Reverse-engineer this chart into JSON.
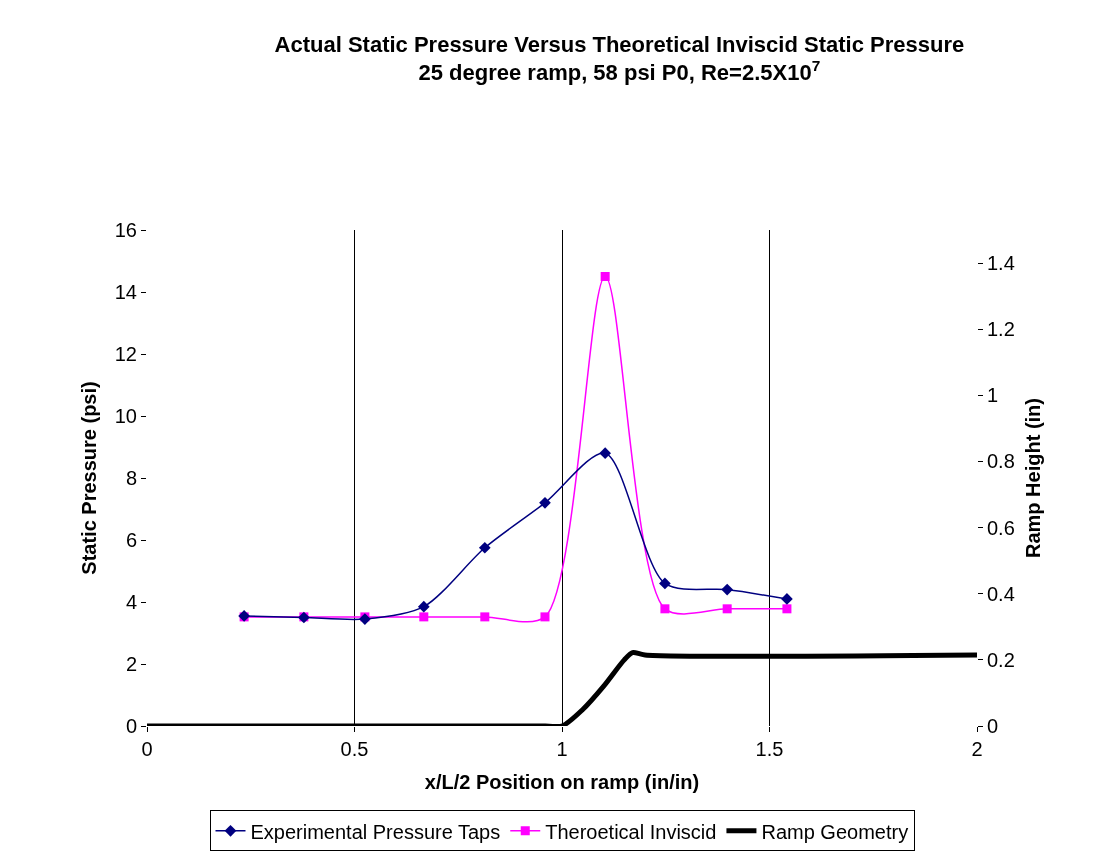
{
  "chart_data": {
    "type": "line",
    "title": "Actual Static Pressure Versus Theoretical Inviscid Static Pressure\n25 degree ramp, 58 psi P0, Re=2.5X10$^{7}$",
    "xlabel": "x/L/2 Position on ramp (in/in)",
    "ylabel": "Static Pressure (psi)",
    "y2label": "Ramp Height (in)",
    "xlim": [
      0,
      2
    ],
    "xticks": [
      0,
      0.5,
      1,
      1.5,
      2
    ],
    "ylim": [
      0,
      16
    ],
    "yticks": [
      0,
      2,
      4,
      6,
      8,
      10,
      12,
      14,
      16
    ],
    "y2lim": [
      0,
      1.5
    ],
    "y2ticks": [
      0,
      0.2,
      0.4,
      0.6,
      0.8,
      1,
      1.2,
      1.4
    ],
    "grid": "x",
    "legend": "bottom",
    "series": [
      {
        "name": "Experimental Pressure Taps",
        "color": "#000080",
        "marker": "diamond",
        "x": [
          0.234,
          0.378,
          0.525,
          0.667,
          0.814,
          0.959,
          1.104,
          1.248,
          1.398,
          1.542
        ],
        "values": [
          3.55,
          3.5,
          3.45,
          3.85,
          5.75,
          7.2,
          8.8,
          4.6,
          4.4,
          4.1
        ]
      },
      {
        "name": "Theroetical Inviscid",
        "color": "#ff00ff",
        "marker": "square",
        "x": [
          0.234,
          0.378,
          0.525,
          0.667,
          0.814,
          0.959,
          1.104,
          1.248,
          1.398,
          1.542
        ],
        "values": [
          3.52,
          3.52,
          3.52,
          3.52,
          3.52,
          3.52,
          14.5,
          3.78,
          3.78,
          3.78
        ]
      },
      {
        "name": "Ramp Geometry",
        "color": "#000000",
        "marker": "none",
        "axis": "y2",
        "x": [
          0,
          0.96,
          1.0,
          1.05,
          1.1,
          1.15,
          1.17,
          1.2,
          2
        ],
        "values": [
          0,
          0,
          0,
          0.05,
          0.12,
          0.2,
          0.222,
          0.215,
          0.215
        ]
      }
    ]
  }
}
